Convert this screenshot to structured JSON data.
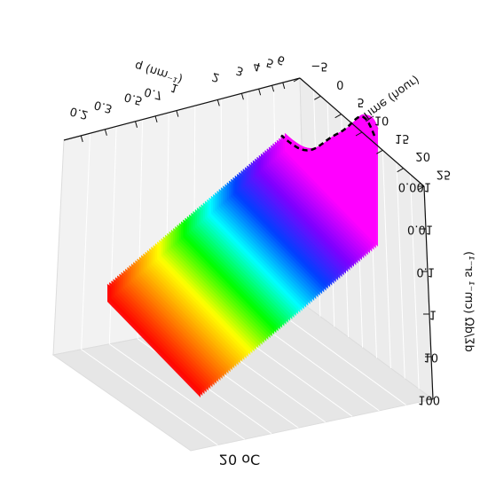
{
  "chart_data": {
    "type": "area",
    "view": "3d-surface-waterfall",
    "mirrored": true,
    "caption": "20 oC",
    "grid": true,
    "axes": {
      "q": {
        "label": "q (nm⁻¹)",
        "scale": "log",
        "ticks": [
          {
            "value": 0.2,
            "label": "0.2"
          },
          {
            "value": 0.3,
            "label": "0.3"
          },
          {
            "value": 0.5,
            "label": "0.5"
          },
          {
            "value": 0.7,
            "label": "0.7"
          },
          {
            "value": 1,
            "label": "1"
          },
          {
            "value": 2,
            "label": "2"
          },
          {
            "value": 3,
            "label": "3"
          },
          {
            "value": 4,
            "label": "4"
          },
          {
            "value": 5,
            "label": "5"
          },
          {
            "value": 6,
            "label": "6"
          }
        ]
      },
      "time": {
        "label": "Time (hour)",
        "range": [
          -5,
          25
        ],
        "ticks": [
          {
            "value": -5,
            "label": "−5"
          },
          {
            "value": 0,
            "label": "0"
          },
          {
            "value": 5,
            "label": "5"
          },
          {
            "value": 10,
            "label": "10"
          },
          {
            "value": 15,
            "label": "15"
          },
          {
            "value": 20,
            "label": "20"
          },
          {
            "value": 25,
            "label": "25"
          }
        ]
      },
      "intensity": {
        "label": "dΣ/dΩ (cm⁻¹ sr⁻¹)",
        "scale": "log",
        "ticks": [
          {
            "value": 0.001,
            "label": "0.001"
          },
          {
            "value": 0.01,
            "label": "0.01"
          },
          {
            "value": 0.1,
            "label": "0.1"
          },
          {
            "value": 1,
            "label": "1"
          },
          {
            "value": 10,
            "label": "10"
          },
          {
            "value": 100,
            "label": "100"
          }
        ]
      }
    },
    "series_color_scale": [
      "#ff0000",
      "#ff8000",
      "#ffff00",
      "#00ff00",
      "#00ffff",
      "#0040ff",
      "#8000ff",
      "#ff00ff"
    ],
    "reference_curve_color": "#000000"
  }
}
